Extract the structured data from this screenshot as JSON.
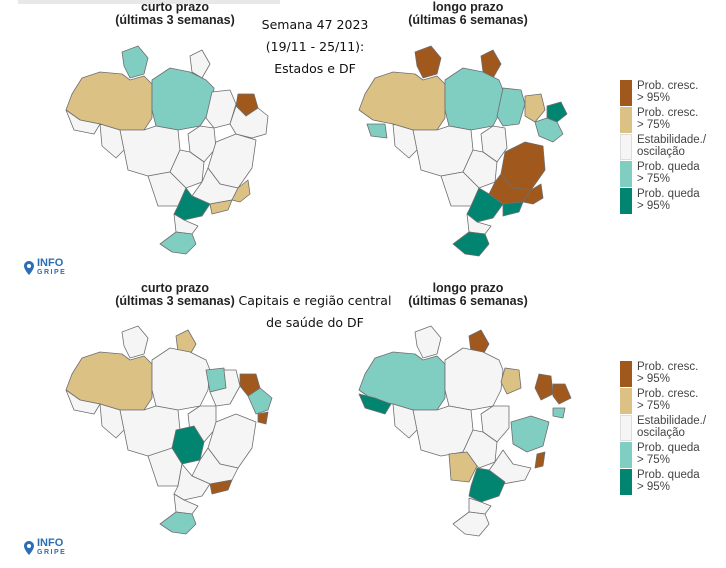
{
  "panels": [
    {
      "title_line1": "curto prazo",
      "title_line2": "(últimas 3 semanas)"
    },
    {
      "title_line1": "longo prazo",
      "title_line2": "(últimas 6 semanas)"
    },
    {
      "title_line1": "curto prazo",
      "title_line2": "(últimas 3 semanas)"
    },
    {
      "title_line1": "longo prazo",
      "title_line2": "(últimas 6 semanas)"
    }
  ],
  "center_top": {
    "line1": "Semana 47 2023",
    "line2": "(19/11 - 25/11):",
    "line3": "Estados e DF"
  },
  "center_bottom": {
    "line1": "Capitais e região central",
    "line2": "de saúde do DF"
  },
  "legend": [
    {
      "line1": "Prob. cresc.",
      "line2": "> 95%",
      "color": "#a0581d"
    },
    {
      "line1": "Prob. cresc.",
      "line2": "> 75%",
      "color": "#dcc185"
    },
    {
      "line1": "Estabilidade./",
      "line2": "oscilação",
      "color": "#f5f5f5"
    },
    {
      "line1": "Prob. queda",
      "line2": "> 75%",
      "color": "#80cdc1"
    },
    {
      "line1": "Prob. queda",
      "line2": "> 95%",
      "color": "#018571"
    }
  ],
  "logo": {
    "line1": "INFO",
    "line2": "GRIPE"
  },
  "colors": {
    "cresc95": "#a0581d",
    "cresc75": "#dcc185",
    "estab": "#f5f5f5",
    "queda75": "#80cdc1",
    "queda95": "#018571",
    "border": "#6e6e6e",
    "logo": "#2d6db3"
  }
}
